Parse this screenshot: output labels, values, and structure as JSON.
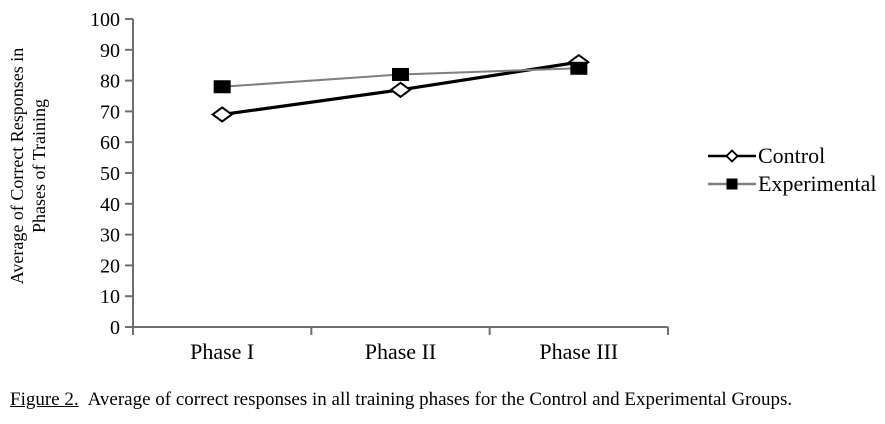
{
  "figure": {
    "caption": {
      "label": "Figure 2.",
      "text": "Average of correct responses in all training phases for the Control and Experimental Groups."
    }
  },
  "chart_data": {
    "type": "line",
    "categories": [
      "Phase I",
      "Phase II",
      "Phase III"
    ],
    "series": [
      {
        "name": "Control",
        "values": [
          69,
          77,
          86
        ],
        "marker": "open-diamond",
        "marker_fill": "#ffffff",
        "marker_stroke": "#000000",
        "line_color": "#000000",
        "line_width": 3.2
      },
      {
        "name": "Experimental",
        "values": [
          78,
          82,
          84
        ],
        "marker": "filled-square",
        "marker_fill": "#000000",
        "marker_stroke": "#000000",
        "line_color": "#7f7f7f",
        "line_width": 2
      }
    ],
    "ylabel": "Average of Correct Responses in Phases of Training",
    "ylabel_lines": [
      "Average of Correct Responses in",
      "Phases of Training"
    ],
    "xlabel": "",
    "ylim": [
      0,
      100
    ],
    "ytick_step": 10,
    "yticks": [
      0,
      10,
      20,
      30,
      40,
      50,
      60,
      70,
      80,
      90,
      100
    ],
    "grid": false,
    "legend_position": "right",
    "axis_color": "#6e6e6e",
    "text_color": "#000000",
    "background_color": "#ffffff"
  }
}
